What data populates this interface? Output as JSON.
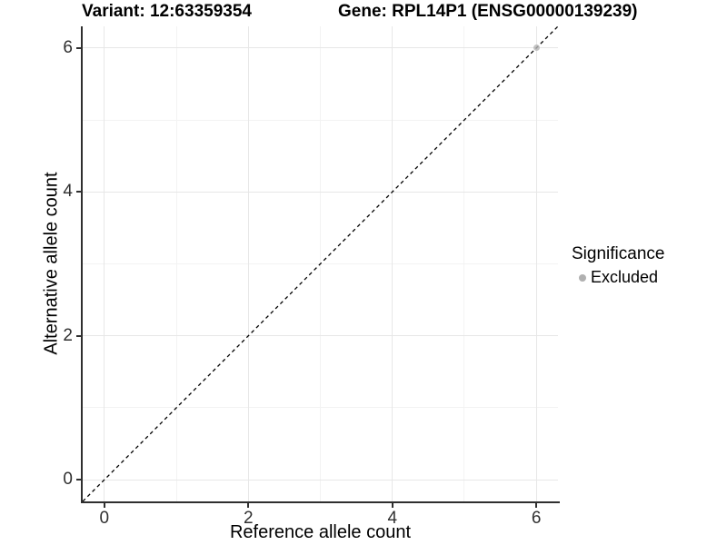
{
  "chart_data": {
    "type": "scatter",
    "titles": {
      "variant": "Variant: 12:63359354",
      "gene": "Gene: RPL14P1 (ENSG00000139239)"
    },
    "xlabel": "Reference allele count",
    "ylabel": "Alternative allele count",
    "xlim": [
      -0.3,
      6.3
    ],
    "ylim": [
      -0.3,
      6.3
    ],
    "x_ticks": [
      0,
      2,
      4,
      6
    ],
    "y_ticks": [
      0,
      2,
      4,
      6
    ],
    "x_minor_ticks": [
      1,
      3,
      5
    ],
    "y_minor_ticks": [
      1,
      3,
      5
    ],
    "grid": true,
    "series": [
      {
        "name": "Excluded",
        "color": "#b5b5b5",
        "opacity": 0.8,
        "points": [
          [
            6,
            6
          ]
        ]
      }
    ],
    "reference_line": {
      "kind": "identity",
      "equation": "y = x",
      "style": "dashed",
      "color": "#000000"
    },
    "legend": {
      "title": "Significance",
      "position": "right",
      "entries": [
        {
          "label": "Excluded",
          "color": "#b0b0b0"
        }
      ]
    },
    "colors": {
      "major_grid": "#e7e7e7",
      "minor_grid": "#f3f3f3",
      "axis_line": "#2f2f2f",
      "tick_text": "#303030"
    }
  }
}
